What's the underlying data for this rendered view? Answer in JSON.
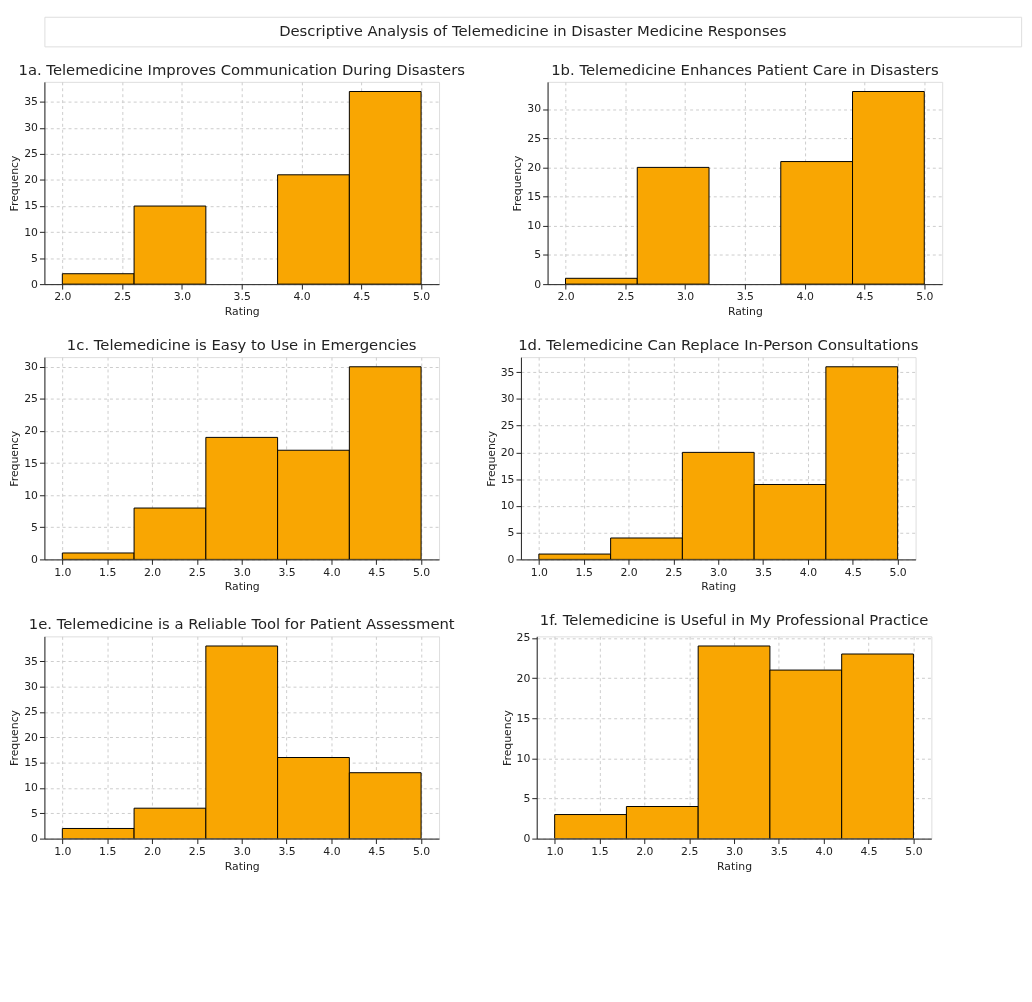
{
  "chart_data": [
    {
      "type": "other",
      "title": "Descriptive Analysis of Telemedicine in Disaster Medicine Responses"
    },
    {
      "type": "histogram",
      "title": "1a. Telemedicine Improves Communication During Disasters",
      "xlabel": "Rating",
      "ylabel": "Frequency",
      "bins": [
        2.0,
        2.6,
        3.2,
        3.8,
        4.4,
        5.0
      ],
      "values": [
        2,
        15,
        0,
        21,
        37
      ],
      "color": "#f9a602",
      "xlim": [
        1.85,
        5.15
      ],
      "ylim": [
        0,
        38.85
      ],
      "xticks": [
        {
          "value": 2,
          "label": "2.0"
        },
        {
          "value": 2.5,
          "label": "2.5"
        },
        {
          "value": 3,
          "label": "3.0"
        },
        {
          "value": 3.5,
          "label": "3.5"
        },
        {
          "value": 4,
          "label": "4.0"
        },
        {
          "value": 4.5,
          "label": "4.5"
        },
        {
          "value": 5,
          "label": "5.0"
        }
      ],
      "yticks": [
        0,
        5,
        10,
        15,
        20,
        25,
        30,
        35
      ],
      "grid": true
    },
    {
      "type": "histogram",
      "title": "1b. Telemedicine Enhances Patient Care in Disasters",
      "xlabel": "Rating",
      "ylabel": "Frequency",
      "bins": [
        2.0,
        2.6,
        3.2,
        3.8,
        4.4,
        5.0
      ],
      "values": [
        1,
        20,
        0,
        21,
        33
      ],
      "color": "#f9a602",
      "xlim": [
        1.85,
        5.15
      ],
      "ylim": [
        0,
        34.65
      ],
      "xticks": [
        {
          "value": 2,
          "label": "2.0"
        },
        {
          "value": 2.5,
          "label": "2.5"
        },
        {
          "value": 3,
          "label": "3.0"
        },
        {
          "value": 3.5,
          "label": "3.5"
        },
        {
          "value": 4,
          "label": "4.0"
        },
        {
          "value": 4.5,
          "label": "4.5"
        },
        {
          "value": 5,
          "label": "5.0"
        }
      ],
      "yticks": [
        0,
        5,
        10,
        15,
        20,
        25,
        30
      ],
      "grid": true
    },
    {
      "type": "histogram",
      "title": "1c. Telemedicine is Easy to Use in Emergencies",
      "xlabel": "Rating",
      "ylabel": "Frequency",
      "bins": [
        1.0,
        1.8,
        2.6,
        3.4,
        4.2,
        5.0
      ],
      "values": [
        1,
        8,
        19,
        17,
        30
      ],
      "color": "#f9a602",
      "xlim": [
        0.8,
        5.2
      ],
      "ylim": [
        0,
        31.5
      ],
      "xticks": [
        {
          "value": 1,
          "label": "1.0"
        },
        {
          "value": 1.5,
          "label": "1.5"
        },
        {
          "value": 2,
          "label": "2.0"
        },
        {
          "value": 2.5,
          "label": "2.5"
        },
        {
          "value": 3,
          "label": "3.0"
        },
        {
          "value": 3.5,
          "label": "3.5"
        },
        {
          "value": 4,
          "label": "4.0"
        },
        {
          "value": 4.5,
          "label": "4.5"
        },
        {
          "value": 5,
          "label": "5.0"
        }
      ],
      "yticks": [
        0,
        5,
        10,
        15,
        20,
        25,
        30
      ],
      "grid": true
    },
    {
      "type": "histogram",
      "title": "1d. Telemedicine Can Replace In-Person Consultations",
      "xlabel": "Rating",
      "ylabel": "Frequency",
      "bins": [
        1.0,
        1.8,
        2.6,
        3.4,
        4.2,
        5.0
      ],
      "values": [
        1,
        4,
        20,
        14,
        36
      ],
      "color": "#f9a602",
      "xlim": [
        0.8,
        5.2
      ],
      "ylim": [
        0,
        37.8
      ],
      "xticks": [
        {
          "value": 1,
          "label": "1.0"
        },
        {
          "value": 1.5,
          "label": "1.5"
        },
        {
          "value": 2,
          "label": "2.0"
        },
        {
          "value": 2.5,
          "label": "2.5"
        },
        {
          "value": 3,
          "label": "3.0"
        },
        {
          "value": 3.5,
          "label": "3.5"
        },
        {
          "value": 4,
          "label": "4.0"
        },
        {
          "value": 4.5,
          "label": "4.5"
        },
        {
          "value": 5,
          "label": "5.0"
        }
      ],
      "yticks": [
        0,
        5,
        10,
        15,
        20,
        25,
        30,
        35
      ],
      "grid": true
    },
    {
      "type": "histogram",
      "title": "1e. Telemedicine is a Reliable Tool for Patient Assessment",
      "xlabel": "Rating",
      "ylabel": "Frequency",
      "bins": [
        1.0,
        1.8,
        2.6,
        3.4,
        4.2,
        5.0
      ],
      "values": [
        2,
        6,
        38,
        16,
        13
      ],
      "color": "#f9a602",
      "xlim": [
        0.8,
        5.2
      ],
      "ylim": [
        0,
        39.9
      ],
      "xticks": [
        {
          "value": 1,
          "label": "1.0"
        },
        {
          "value": 1.5,
          "label": "1.5"
        },
        {
          "value": 2,
          "label": "2.0"
        },
        {
          "value": 2.5,
          "label": "2.5"
        },
        {
          "value": 3,
          "label": "3.0"
        },
        {
          "value": 3.5,
          "label": "3.5"
        },
        {
          "value": 4,
          "label": "4.0"
        },
        {
          "value": 4.5,
          "label": "4.5"
        },
        {
          "value": 5,
          "label": "5.0"
        }
      ],
      "yticks": [
        0,
        5,
        10,
        15,
        20,
        25,
        30,
        35
      ],
      "grid": true
    },
    {
      "type": "histogram",
      "title": "1f. Telemedicine is Useful in My Professional Practice",
      "xlabel": "Rating",
      "ylabel": "Frequency",
      "bins": [
        1.0,
        1.8,
        2.6,
        3.4,
        4.2,
        5.0
      ],
      "values": [
        3,
        4,
        24,
        21,
        23
      ],
      "color": "#f9a602",
      "xlim": [
        0.8,
        5.2
      ],
      "ylim": [
        0,
        25.2
      ],
      "xticks": [
        {
          "value": 1,
          "label": "1.0"
        },
        {
          "value": 1.5,
          "label": "1.5"
        },
        {
          "value": 2,
          "label": "2.0"
        },
        {
          "value": 2.5,
          "label": "2.5"
        },
        {
          "value": 3,
          "label": "3.0"
        },
        {
          "value": 3.5,
          "label": "3.5"
        },
        {
          "value": 4,
          "label": "4.0"
        },
        {
          "value": 4.5,
          "label": "4.5"
        },
        {
          "value": 5,
          "label": "5.0"
        }
      ],
      "yticks": [
        0,
        5,
        10,
        15,
        20,
        25
      ],
      "grid": true
    }
  ]
}
